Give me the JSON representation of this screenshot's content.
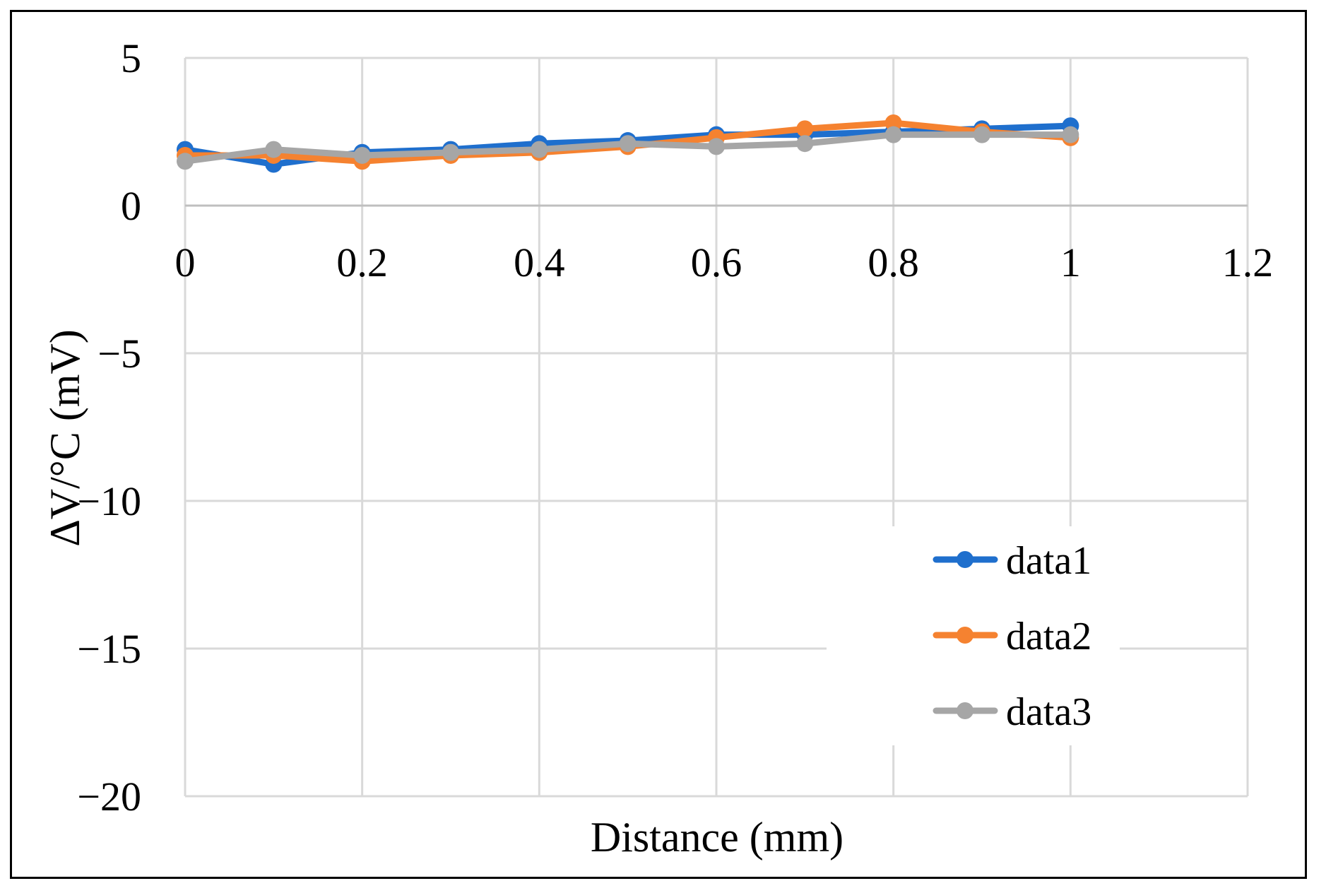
{
  "chart_data": {
    "type": "line",
    "title": "",
    "xlabel": "Distance (mm)",
    "ylabel": "ΔV/°C (mV)",
    "xlim": [
      0,
      1.2
    ],
    "ylim": [
      -20,
      5
    ],
    "x_ticks": [
      0,
      0.2,
      0.4,
      0.6,
      0.8,
      1,
      1.2
    ],
    "x_tick_labels": [
      "0",
      "0.2",
      "0.4",
      "0.6",
      "0.8",
      "1",
      "1.2"
    ],
    "y_ticks": [
      5,
      0,
      -5,
      -10,
      -15,
      -20
    ],
    "y_tick_labels": [
      "5",
      "0",
      "−5",
      "−10",
      "−15",
      "−20"
    ],
    "grid": true,
    "legend_position": "bottom-right",
    "x": [
      0,
      0.1,
      0.2,
      0.3,
      0.4,
      0.5,
      0.6,
      0.7,
      0.8,
      0.9,
      1.0
    ],
    "series": [
      {
        "name": "data1",
        "color": "#1f6fcd",
        "values": [
          1.9,
          1.4,
          1.8,
          1.9,
          2.1,
          2.2,
          2.4,
          2.4,
          2.5,
          2.6,
          2.7
        ]
      },
      {
        "name": "data2",
        "color": "#f58230",
        "values": [
          1.7,
          1.7,
          1.5,
          1.7,
          1.8,
          2.0,
          2.3,
          2.6,
          2.8,
          2.5,
          2.3
        ]
      },
      {
        "name": "data3",
        "color": "#a6a6a6",
        "values": [
          1.5,
          1.9,
          1.7,
          1.8,
          1.9,
          2.1,
          2.0,
          2.1,
          2.4,
          2.4,
          2.4
        ]
      }
    ]
  }
}
